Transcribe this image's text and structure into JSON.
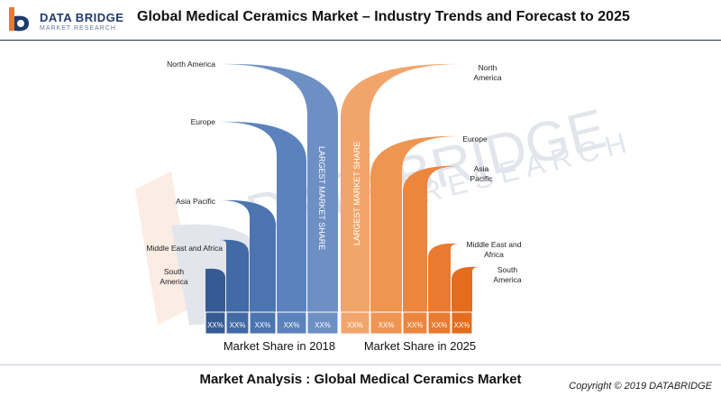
{
  "header": {
    "logo_line1": "DATA BRIDGE",
    "logo_line2": "MARKET RESEARCH",
    "title": "Global Medical Ceramics Market  – Industry Trends and Forecast to 2025"
  },
  "watermark": {
    "line1": "DATA BRIDGE",
    "line2": "RESEARCH"
  },
  "colors": {
    "blue": "#3c6aa8",
    "orange": "#ed7d31",
    "navy": "#1a2d53"
  },
  "chart_data": {
    "type": "bar",
    "categories": [
      "North America",
      "Europe",
      "Asia Pacific",
      "Middle East and Africa",
      "South America"
    ],
    "series": [
      {
        "name": "Market Share in 2018",
        "values": [
          "XX%",
          "XX%",
          "XX%",
          "XX%",
          "XX%"
        ]
      },
      {
        "name": "Market Share in 2025",
        "values": [
          "XX%",
          "XX%",
          "XX%",
          "XX%",
          "XX%"
        ]
      }
    ],
    "left_labels": [
      "North America",
      "Europe",
      "Asia Pacific",
      "Middle East and Africa",
      "South America"
    ],
    "right_labels": [
      "North\nAmerica",
      "Europe",
      "Asia\nPacific",
      "Middle East and\nAfrica",
      "South\nAmerica"
    ],
    "annotation_2018": "LARGEST MARKET SHARE",
    "annotation_2025": "LARGEST MARKET SHARE",
    "xlabel_2018": "Market Share in 2018",
    "xlabel_2025": "Market Share in 2025"
  },
  "footer": {
    "title": "Market Analysis :  Global Medical Ceramics Market",
    "copyright": "Copyright © 2019 DATABRIDGE"
  }
}
